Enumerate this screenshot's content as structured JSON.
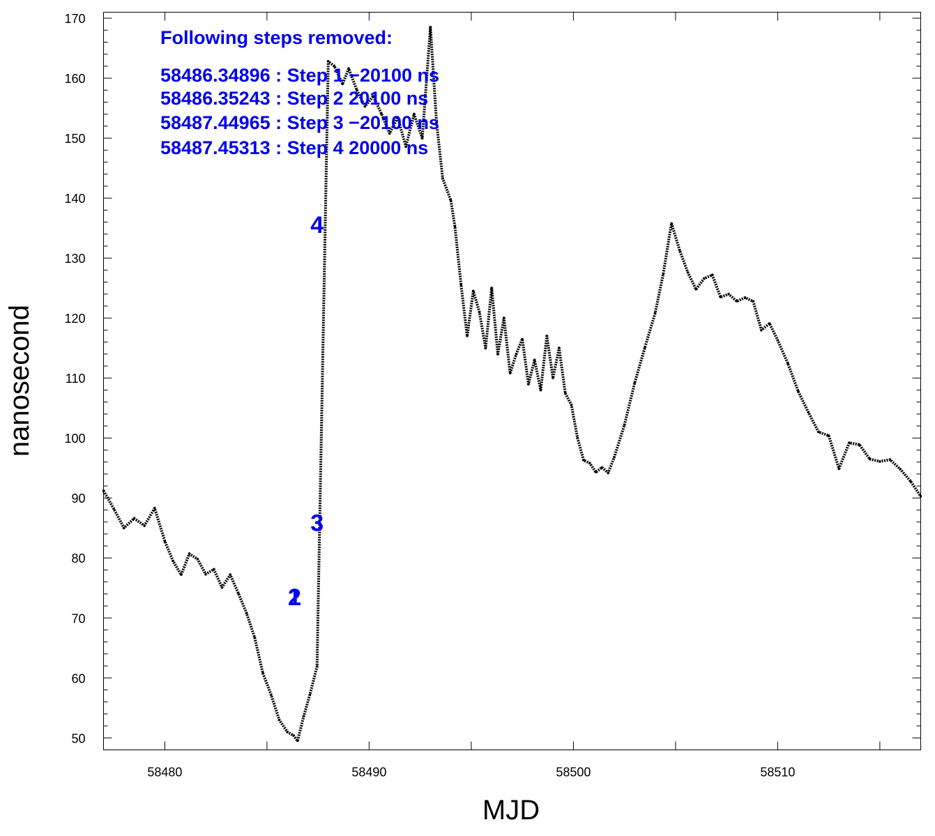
{
  "chart_data": {
    "type": "line",
    "xlabel": "MJD",
    "ylabel": "nanosecond",
    "xlim": [
      58477,
      58517
    ],
    "ylim": [
      48,
      171
    ],
    "xticks": [
      58480,
      58490,
      58500,
      58510
    ],
    "yticks": [
      50,
      60,
      70,
      80,
      90,
      100,
      110,
      120,
      130,
      140,
      150,
      160,
      170
    ],
    "grid": false,
    "legend": "none",
    "colors": {
      "data": "#000000",
      "annotation": "#0000ee"
    },
    "annotation": {
      "header": "Following steps removed:",
      "lines": [
        "58486.34896 : Step 1 −20100 ns",
        "58486.35243 : Step 2 20100 ns",
        "58487.44965 : Step 3 −20100 ns",
        "58487.45313 : Step 4 20000 ns"
      ]
    },
    "step_markers": [
      {
        "label": "1",
        "x": 58486.35,
        "y": 73.5
      },
      {
        "label": "2",
        "x": 58486.35,
        "y": 73.5
      },
      {
        "label": "3",
        "x": 58487.45,
        "y": 85.9
      },
      {
        "label": "4",
        "x": 58487.45,
        "y": 135.6
      }
    ],
    "series": [
      {
        "x": [
          58477.0,
          58477.5,
          58478.0,
          58478.5,
          58479.0,
          58479.5,
          58480.0,
          58480.4,
          58480.8,
          58481.2,
          58481.6,
          58482.0,
          58482.4,
          58482.8,
          58483.2,
          58483.6,
          58484.0,
          58484.4,
          58484.8,
          58485.2,
          58485.6,
          58486.0,
          58486.3,
          58486.5,
          58486.8,
          58487.1,
          58487.45,
          58488.0,
          58488.3,
          58488.7,
          58489.0,
          58489.4,
          58489.8,
          58490.2,
          58490.6,
          58491.0,
          58491.4,
          58491.8,
          58492.2,
          58492.6,
          58493.0,
          58493.3,
          58493.6,
          58494.0,
          58494.2,
          58494.5,
          58494.8,
          58495.1,
          58495.4,
          58495.7,
          58496.0,
          58496.3,
          58496.6,
          58496.9,
          58497.2,
          58497.5,
          58497.8,
          58498.1,
          58498.4,
          58498.7,
          58499.0,
          58499.3,
          58499.6,
          58499.9,
          58500.2,
          58500.5,
          58500.8,
          58501.1,
          58501.4,
          58501.7,
          58502.0,
          58502.5,
          58503.0,
          58503.5,
          58504.0,
          58504.4,
          58504.8,
          58505.2,
          58505.6,
          58506.0,
          58506.4,
          58506.8,
          58507.2,
          58507.6,
          58508.0,
          58508.4,
          58508.8,
          58509.2,
          58509.6,
          58510.0,
          58510.5,
          58511.0,
          58511.5,
          58512.0,
          58512.5,
          58513.0,
          58513.5,
          58514.0,
          58514.5,
          58515.0,
          58515.5,
          58516.0,
          58516.5,
          58517.0
        ],
        "y": [
          91.2,
          88.2,
          85.0,
          86.6,
          85.4,
          88.3,
          82.8,
          79.5,
          77.2,
          80.7,
          79.8,
          77.3,
          78.1,
          75.1,
          77.2,
          74.1,
          70.8,
          66.7,
          60.8,
          57.2,
          53.0,
          51.0,
          50.4,
          49.5,
          53.6,
          57.2,
          61.9,
          162.8,
          162.0,
          159.0,
          161.6,
          158.0,
          155.3,
          157.0,
          154.1,
          150.8,
          153.5,
          148.6,
          154.0,
          150.0,
          168.5,
          152.6,
          143.3,
          139.6,
          135.2,
          125.5,
          117.0,
          124.5,
          121.0,
          115.0,
          125.0,
          114.0,
          120.0,
          110.8,
          114.0,
          116.5,
          109.0,
          113.0,
          108.0,
          117.0,
          110.0,
          115.0,
          107.5,
          105.5,
          100.0,
          96.3,
          95.8,
          94.3,
          95.1,
          94.2,
          96.8,
          102.2,
          109.2,
          115.1,
          120.8,
          127.4,
          135.8,
          131.3,
          127.6,
          124.8,
          126.6,
          127.2,
          123.5,
          124.0,
          122.8,
          123.4,
          122.8,
          118.0,
          119.1,
          116.3,
          112.4,
          107.8,
          104.3,
          101.0,
          100.4,
          94.9,
          99.2,
          98.9,
          96.5,
          96.1,
          96.4,
          94.8,
          92.8,
          90.3
        ]
      }
    ]
  }
}
